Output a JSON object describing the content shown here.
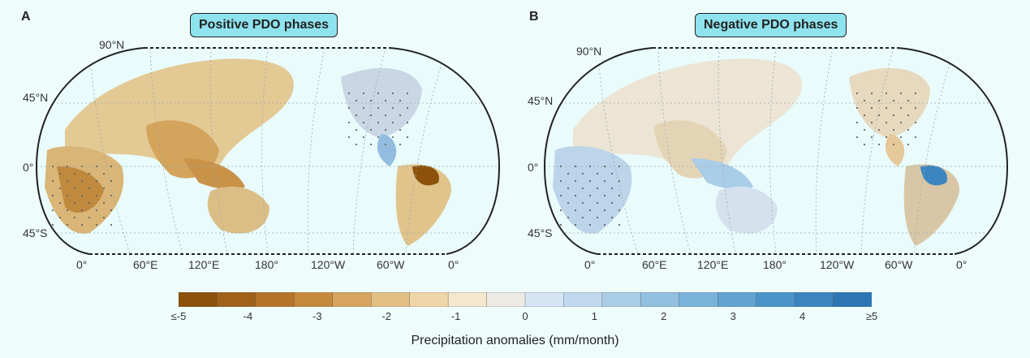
{
  "panels": [
    {
      "letter": "A",
      "title": "Positive PDO phases",
      "lat_labels": [
        "90°N",
        "45°N",
        "0°",
        "45°S"
      ],
      "lon_labels": [
        "0°",
        "60°E",
        "120°E",
        "180°",
        "120°W",
        "60°W",
        "0°"
      ]
    },
    {
      "letter": "B",
      "title": "Negative PDO phases",
      "lat_labels": [
        "90°N",
        "45°N",
        "0°",
        "45°S"
      ],
      "lon_labels": [
        "0°",
        "60°E",
        "120°E",
        "180°",
        "120°W",
        "60°W",
        "0°"
      ]
    }
  ],
  "colorbar": {
    "title": "Precipitation anomalies (mm/month)",
    "tick_labels": [
      "≤-5",
      "-4",
      "-3",
      "-2",
      "-1",
      "0",
      "1",
      "2",
      "3",
      "4",
      "≥5"
    ],
    "colors": [
      "#8c510a",
      "#a0621a",
      "#b5742a",
      "#c68a3e",
      "#d6a45e",
      "#e2bf83",
      "#eed6a8",
      "#f5e7cd",
      "#eceae3",
      "#d5e5f3",
      "#c0d9ee",
      "#aacde8",
      "#92c0e1",
      "#7ab2da",
      "#62a3d2",
      "#4a94c9",
      "#3b85c0",
      "#2c76b6"
    ],
    "range": [
      -5,
      5
    ]
  },
  "colors": {
    "background": "#effcfc",
    "title_badge": "#8fe3ee",
    "ocean": "#e9fbfb"
  }
}
